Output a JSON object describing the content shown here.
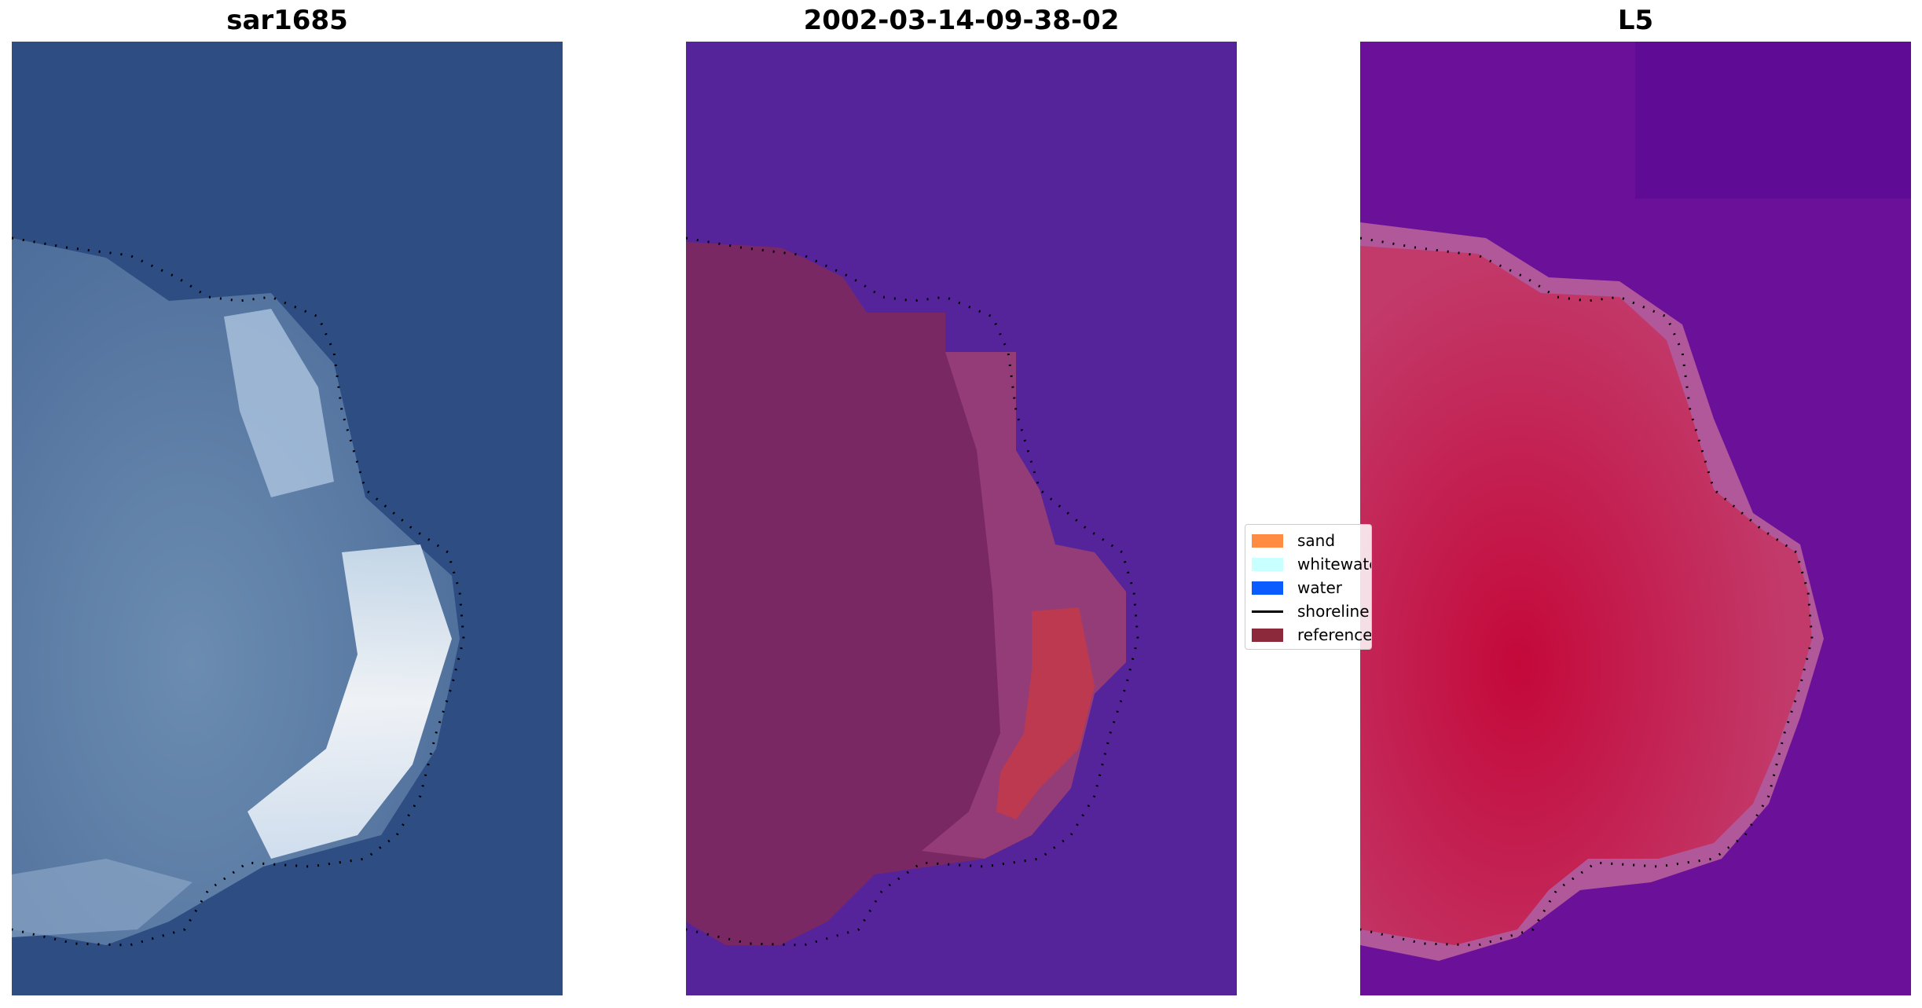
{
  "chart_data": [
    {
      "type": "image",
      "title": "sar1685",
      "content": "RGB satellite image",
      "base_color": "#2e4d82",
      "overlay": "shoreline dotted line"
    },
    {
      "type": "image",
      "title": "2002-03-14-09-38-02",
      "content": "classified image overlay",
      "base_color": "#55249a",
      "overlay": "shoreline dotted line"
    },
    {
      "type": "image",
      "title": "L5",
      "content": "index image",
      "base_color": "#6a1099",
      "overlay": "shoreline dotted line"
    }
  ],
  "legend": {
    "items": [
      {
        "label": "sand",
        "color": "#ff8c42",
        "kind": "patch"
      },
      {
        "label": "whitewater",
        "color": "#c8ffff",
        "kind": "patch"
      },
      {
        "label": "water",
        "color": "#0a5cff",
        "kind": "patch"
      },
      {
        "label": "shoreline",
        "color": "#000000",
        "kind": "line"
      },
      {
        "label": "reference",
        "color": "#8c2a3c",
        "kind": "patch"
      }
    ]
  },
  "colors": {
    "sea_rgb": "#2e4d82",
    "land_rgb": "#6b8fb0",
    "sea_class": "#55249a",
    "land_class": "#7a2864",
    "sea_index": "#6a1099",
    "land_index": "#c41a50"
  }
}
